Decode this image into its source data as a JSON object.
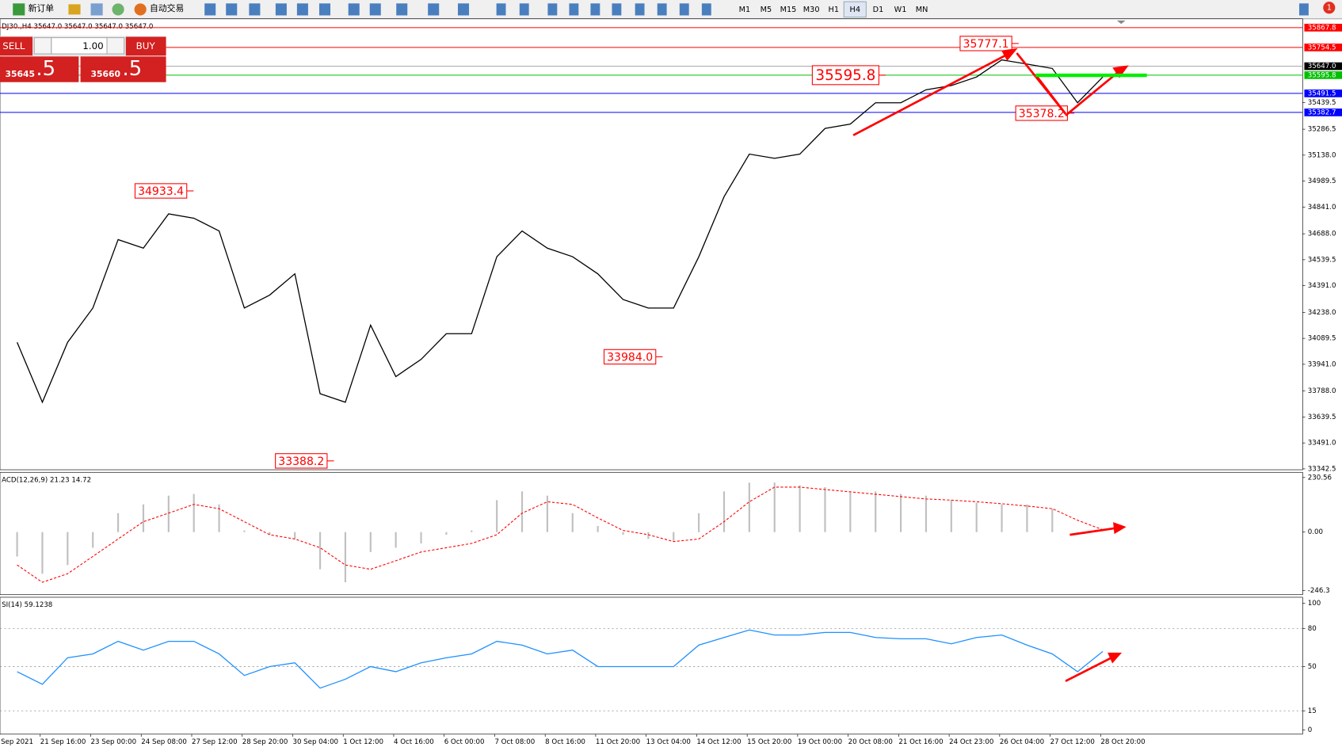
{
  "toolbar": {
    "new_order": "新订单",
    "auto_trading": "自动交易",
    "timeframes": [
      "M1",
      "M5",
      "M15",
      "M30",
      "H1",
      "H4",
      "D1",
      "W1",
      "MN"
    ],
    "notifications": "1"
  },
  "trade_panel": {
    "sell": "SELL",
    "lot": "1.00",
    "buy": "BUY",
    "bid_main": "35645",
    "bid_big": ".5",
    "ask_main": "35660",
    "ask_big": ".5"
  },
  "chart_data": [
    {
      "type": "line",
      "title": "DJ30.,H4  35647.0 35647.0 35647.0 35647.0",
      "color": "#000000",
      "categories": [
        "Sep 2021",
        null,
        "21 Sep 16:00",
        null,
        "23 Sep 00:00",
        null,
        "24 Sep 08:00",
        null,
        "27 Sep 12:00",
        null,
        "28 Sep 20:00",
        null,
        "30 Sep 04:00",
        null,
        "1 Oct 12:00",
        null,
        "4 Oct 16:00",
        null,
        "6 Oct 00:00",
        null,
        "7 Oct 08:00",
        null,
        "8 Oct 16:00",
        null,
        "11 Oct 20:00",
        null,
        "13 Oct 04:00",
        null,
        "14 Oct 12:00",
        null,
        "15 Oct 20:00",
        null,
        "19 Oct 00:00",
        null,
        "20 Oct 08:00",
        null,
        "21 Oct 16:00",
        null,
        "24 Oct 23:00",
        null,
        "26 Oct 04:00",
        null,
        "27 Oct 12:00",
        null,
        "28 Oct 20:00"
      ],
      "values": [
        34067,
        33724,
        34067,
        34263,
        34655,
        34606,
        34802,
        34777,
        34704,
        34263,
        34337,
        34459,
        33773,
        33724,
        34165,
        33871,
        33969,
        34116,
        34116,
        34557,
        34704,
        34606,
        34557,
        34459,
        34312,
        34263,
        34263,
        34557,
        34900,
        35144,
        35120,
        35144,
        35291,
        35316,
        35438,
        35438,
        35512,
        35536,
        35585,
        35683,
        35659,
        35634,
        35438,
        35585,
        null
      ],
      "ylim": [
        33337.5,
        35918.2
      ],
      "yticks": [
        35439.5,
        35286.5,
        {
          "value": 35138.0,
          "label": "35138.0"
        },
        34989.5,
        {
          "value": 34841.0,
          "label": "34841.0"
        },
        {
          "value": 34688.0,
          "label": "34688.0"
        },
        34539.5,
        {
          "value": 34391.0,
          "label": "34391.0"
        },
        {
          "value": 34238.0,
          "label": "34238.0"
        },
        34089.5,
        {
          "value": 33941.0,
          "label": "33941.0"
        },
        {
          "value": 33788.0,
          "label": "33788.0"
        },
        33639.5,
        {
          "value": 33491.0,
          "label": "33491.0"
        },
        33342.5
      ],
      "grid": false,
      "levels": [
        {
          "value": 35867.8,
          "label": "35867.8",
          "color": "#ff0000"
        },
        {
          "value": 35754.5,
          "label": "35754.5",
          "color": "#ff0000"
        },
        {
          "value": 35647.0,
          "label": "35647.0",
          "color": "#000000"
        },
        {
          "value": 35595.8,
          "label": "35595.8",
          "color": "#00c000"
        },
        {
          "value": 35491.5,
          "label": "35491.5",
          "color": "#0000ff"
        },
        {
          "value": 35382.7,
          "label": "35382.7",
          "color": "#0000ff"
        }
      ],
      "annotations": [
        {
          "value": 35777.1,
          "label": "35777.1"
        },
        {
          "value": 35595.8,
          "label": "35595.8"
        },
        {
          "value": 34933.4,
          "label": "34933.4"
        },
        {
          "value": 33984.0,
          "label": "33984.0"
        },
        {
          "value": 33388.2,
          "label": "33388.2"
        },
        {
          "value": 35378.2,
          "label": "35378.2"
        }
      ]
    },
    {
      "type": "bar",
      "title": "ACD(12,26,9) 21.23 14.72",
      "color": "#c0c0c0",
      "values": [
        -103,
        -176,
        -139,
        -66,
        80,
        117,
        154,
        161,
        117,
        7,
        -11,
        -29,
        -157,
        -212,
        -84,
        -66,
        -48,
        -11,
        7,
        135,
        172,
        154,
        80,
        26,
        -11,
        -29,
        -37,
        80,
        172,
        209,
        209,
        198,
        190,
        172,
        172,
        161,
        154,
        135,
        124,
        117,
        117,
        99,
        0,
        null,
        null
      ],
      "signal_values": [
        -139,
        -212,
        -176,
        -103,
        -29,
        44,
        80,
        117,
        99,
        44,
        -11,
        -29,
        -66,
        -139,
        -157,
        -121,
        -84,
        -66,
        -48,
        -11,
        80,
        128,
        117,
        60,
        7,
        -11,
        -40,
        -29,
        44,
        128,
        190,
        190,
        180,
        170,
        160,
        150,
        140,
        135,
        128,
        120,
        110,
        99,
        50,
        10,
        null
      ],
      "signal_color": "#ff0000",
      "ylim": [
        -264.4,
        252.5
      ],
      "yticks": [
        230.56,
        {
          "value": 0,
          "label": "0.00"
        },
        -246.3
      ],
      "grid": false
    },
    {
      "type": "line",
      "title": "SI(14) 59.1238",
      "color": "#1e90ff",
      "values": [
        46,
        36,
        57,
        60,
        70,
        63,
        70,
        70,
        60,
        43,
        50,
        53,
        33,
        40,
        50,
        46,
        53,
        57,
        60,
        70,
        67,
        60,
        63,
        50,
        50,
        50,
        50,
        67,
        73,
        79,
        75,
        75,
        77,
        77,
        73,
        72,
        72,
        68,
        73,
        75,
        67,
        60,
        46,
        62,
        null
      ],
      "ylim": [
        -3.4,
        104.8
      ],
      "yticks": [
        100,
        80,
        50,
        15,
        0
      ],
      "grid": true
    }
  ]
}
